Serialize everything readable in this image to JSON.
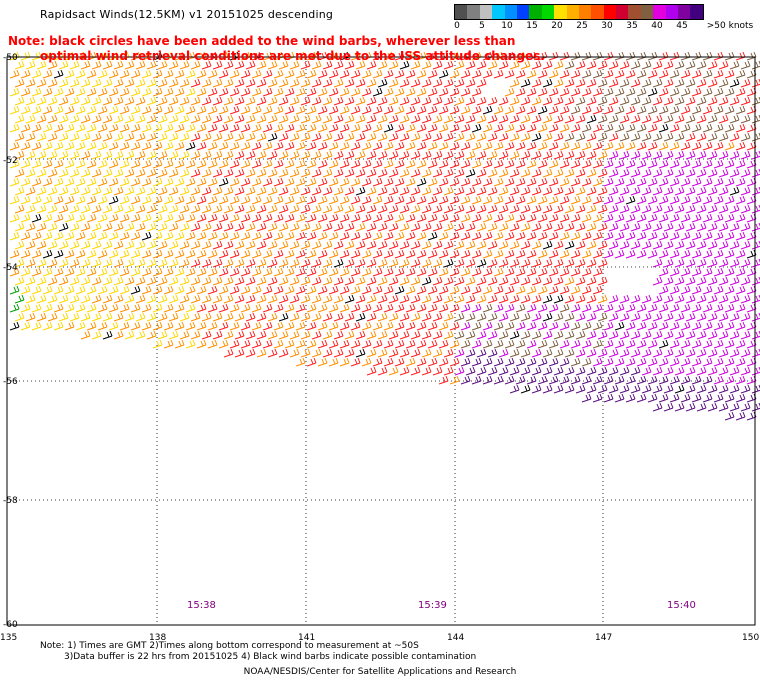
{
  "title": "Rapidsact Winds(12.5KM) v1 20151025 descending",
  "note": {
    "line1": "Note: black circles have been added to the wind barbs, wherever less than",
    "line2": "optimal wind retrieval conditions are met due to the ISS attitude changes."
  },
  "legend": {
    "colors": [
      "#505050",
      "#808080",
      "#c0c0c0",
      "#00c8ff",
      "#0090ff",
      "#0040ff",
      "#00b000",
      "#00d800",
      "#ffe000",
      "#ffb000",
      "#ff8000",
      "#ff5000",
      "#ff0000",
      "#d00030",
      "#a05030",
      "#806040",
      "#e000e0",
      "#b000f0",
      "#8000a0",
      "#400080"
    ],
    "labels": [
      "0",
      "5",
      "10",
      "15",
      "20",
      "25",
      "30",
      "35",
      "40",
      "45",
      ">50 knots"
    ]
  },
  "map": {
    "lon_labels": [
      "135",
      "138",
      "141",
      "144",
      "147",
      "150"
    ],
    "lat_labels": [
      "-50",
      "-52",
      "-54",
      "-56",
      "-58",
      "-60"
    ],
    "time_labels": [
      "15:38",
      "15:39",
      "15:40"
    ],
    "barb_colors": {
      "yellow": "#ffd800",
      "orange": "#ff9000",
      "red": "#ff2020",
      "brown": "#806040",
      "magenta": "#d000e0",
      "purple": "#5a1080",
      "green": "#00a000",
      "black": "#000000"
    }
  },
  "footnotes": {
    "line1": "Note: 1) Times are GMT 2)Times along bottom correspond to measurement at ~50S",
    "line2": "3)Data buffer is 22 hrs from 20151025 4) Black wind barbs indicate possible contamination"
  },
  "credit": "NOAA/NESDIS/Center for Satellite Applications and Research"
}
